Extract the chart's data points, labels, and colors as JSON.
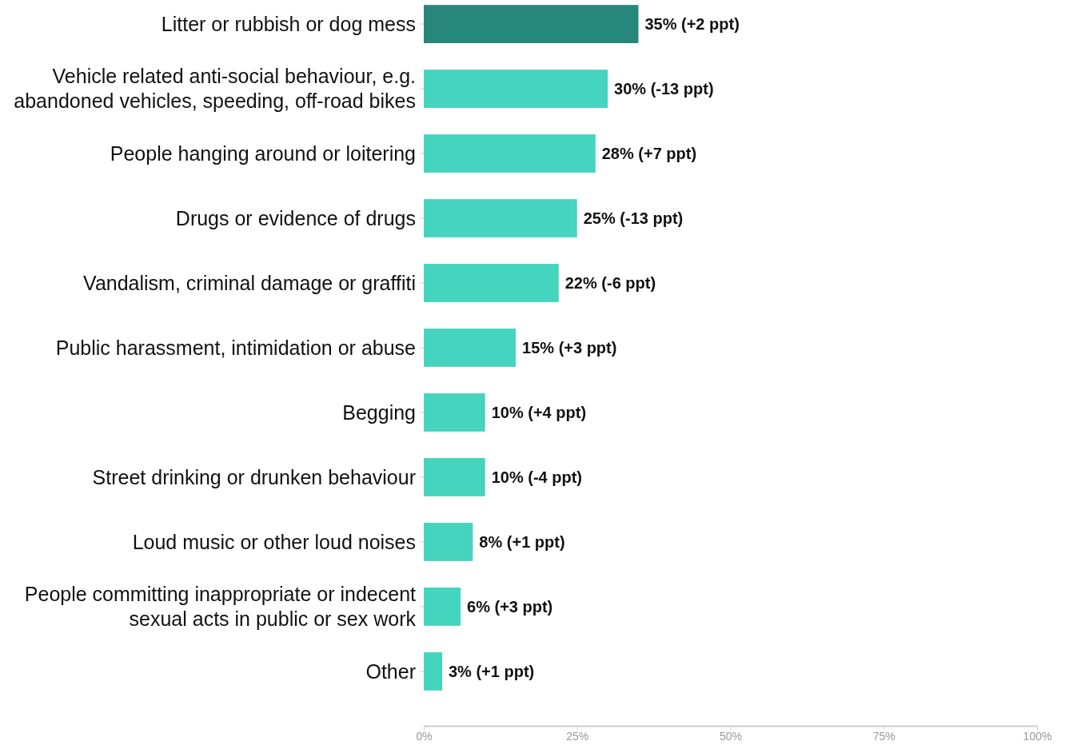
{
  "chart_data": {
    "type": "bar",
    "orientation": "horizontal",
    "categories": [
      "Litter or rubbish or dog mess",
      "Vehicle related anti-social behaviour, e.g. abandoned vehicles, speeding, off-road bikes",
      "People hanging around or loitering",
      "Drugs or evidence of drugs",
      "Vandalism, criminal damage or graffiti",
      "Public harassment, intimidation or abuse",
      "Begging",
      "Street drinking or drunken behaviour",
      "Loud music or other loud noises",
      "People committing inappropriate or indecent sexual acts in public or sex work",
      "Other"
    ],
    "values": [
      35,
      30,
      28,
      25,
      22,
      15,
      10,
      10,
      8,
      6,
      3
    ],
    "colors": [
      "#27877a",
      "#45d4bd",
      "#45d4bd",
      "#45d4bd",
      "#45d4bd",
      "#45d4bd",
      "#45d4bd",
      "#45d4bd",
      "#45d4bd",
      "#45d4bd",
      "#45d4bd"
    ],
    "value_labels": [
      "35% (+2 ppt)",
      "30% (-13 ppt)",
      "28% (+7 ppt)",
      "25% (-13 ppt)",
      "22% (-6 ppt)",
      "15% (+3 ppt)",
      "10% (+4 ppt)",
      "10% (-4 ppt)",
      "8% (+1 ppt)",
      "6% (+3 ppt)",
      "3% (+1 ppt)"
    ],
    "xlim": [
      0,
      100
    ],
    "xticks": [
      {
        "value": 0,
        "label": "0%"
      },
      {
        "value": 25,
        "label": "25%"
      },
      {
        "value": 50,
        "label": "50%"
      },
      {
        "value": 75,
        "label": "75%"
      },
      {
        "value": 100,
        "label": "100%"
      }
    ],
    "grid": false
  }
}
